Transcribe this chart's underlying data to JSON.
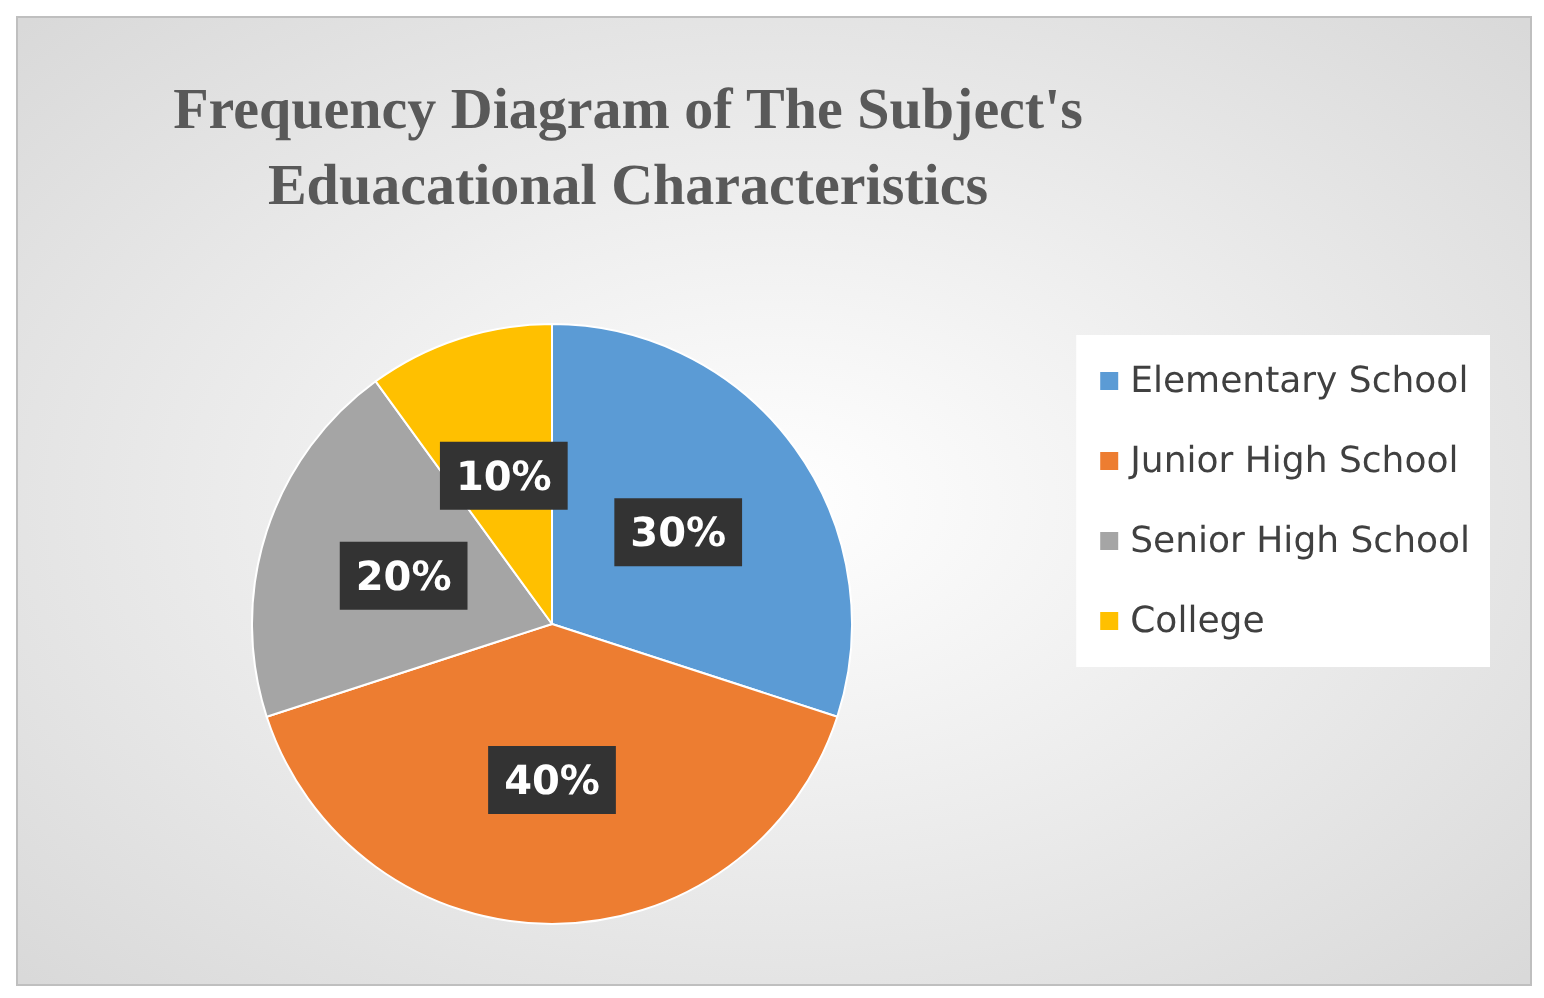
{
  "chart_data": {
    "type": "pie",
    "title": "Frequency Diagram of The Subject's\nEduacational Characteristics",
    "categories": [
      "Elementary School",
      "Junior High School",
      "Senior High School",
      "College"
    ],
    "values": [
      30,
      40,
      20,
      10
    ],
    "colors": [
      "#5b9bd5",
      "#ed7d31",
      "#a5a5a5",
      "#ffc000"
    ],
    "value_labels": [
      "30%",
      "40%",
      "20%",
      "10%"
    ],
    "legend": "right"
  }
}
